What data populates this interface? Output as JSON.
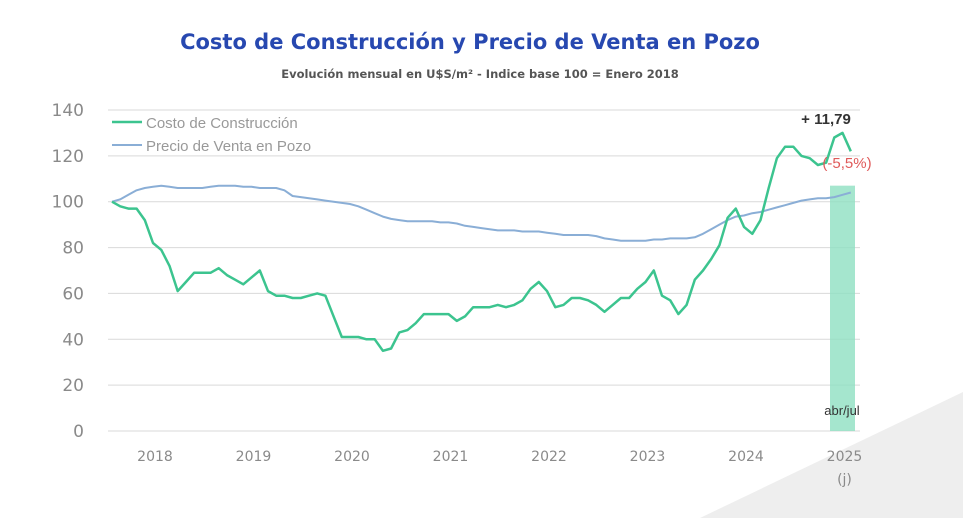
{
  "chart_data": {
    "type": "line",
    "title": "Costo de Construcción y Precio de Venta en Pozo",
    "subtitle": "Evolución mensual en U$S/m² - Indice base 100 = Enero 2018",
    "ylim": [
      0,
      140
    ],
    "yticks": [
      "0",
      "20",
      "40",
      "60",
      "80",
      "100",
      "120",
      "140"
    ],
    "xticks": [
      "2018",
      "2019",
      "2020",
      "2021",
      "2022",
      "2023",
      "2024",
      "2025"
    ],
    "xtick_last_sub": "(j)",
    "x_start": "2018-01",
    "x_frequency": "monthly",
    "grid": true,
    "legend": "top-left",
    "series": [
      {
        "name": "Costo de Construcción",
        "color": "#3cc48f",
        "values": [
          100,
          98,
          97,
          97,
          92,
          82,
          79,
          72,
          61,
          65,
          69,
          69,
          69,
          71,
          68,
          66,
          64,
          67,
          70,
          61,
          59,
          59,
          58,
          58,
          59,
          60,
          59,
          50,
          41,
          41,
          41,
          40,
          40,
          35,
          36,
          43,
          44,
          47,
          51,
          51,
          51,
          51,
          48,
          50,
          54,
          54,
          54,
          55,
          54,
          55,
          57,
          62,
          65,
          61,
          54,
          55,
          58,
          58,
          57,
          55,
          52,
          55,
          58,
          58,
          62,
          65,
          70,
          59,
          57,
          51,
          55,
          66,
          70,
          75,
          81,
          93,
          97,
          89,
          86,
          92,
          106,
          119,
          124,
          124,
          120,
          119,
          116,
          117,
          128,
          130,
          122
        ]
      },
      {
        "name": "Precio de Venta en Pozo",
        "color": "#8aaed6",
        "values": [
          100,
          101,
          103,
          105,
          106,
          106.5,
          107,
          106.5,
          106,
          106,
          106,
          106,
          106.5,
          107,
          107,
          107,
          106.5,
          106.5,
          106,
          106,
          106,
          105,
          102.5,
          102,
          101.5,
          101,
          100.5,
          100,
          99.5,
          99,
          98,
          96.5,
          95,
          93.5,
          92.5,
          92,
          91.5,
          91.5,
          91.5,
          91.5,
          91,
          91,
          90.5,
          89.5,
          89,
          88.5,
          88,
          87.5,
          87.5,
          87.5,
          87,
          87,
          87,
          86.5,
          86,
          85.5,
          85.5,
          85.5,
          85.5,
          85,
          84,
          83.5,
          83,
          83,
          83,
          83,
          83.5,
          83.5,
          84,
          84,
          84,
          84.5,
          86,
          88,
          90,
          92,
          93.5,
          94,
          95,
          95.5,
          96.5,
          97.5,
          98.5,
          99.5,
          100.5,
          101,
          101.5,
          101.5,
          102,
          103,
          104
        ]
      }
    ],
    "highlight": {
      "label": "abr/jul",
      "color": "#8fe0c2"
    },
    "annotations": [
      {
        "text": "+ 11,79",
        "color": "#333333"
      },
      {
        "text": "(-5,5%)",
        "color": "#e05a5a"
      }
    ]
  }
}
